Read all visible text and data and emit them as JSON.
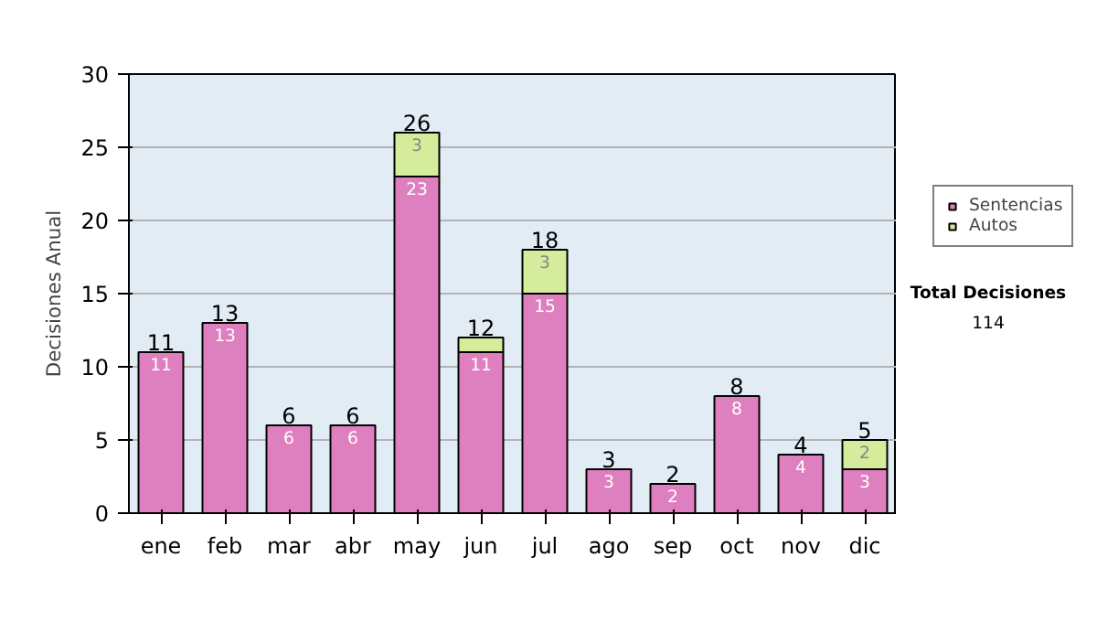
{
  "chart_data": {
    "type": "bar",
    "stacked": true,
    "ylabel": "Decisiones Anual",
    "categories": [
      "ene",
      "feb",
      "mar",
      "abr",
      "may",
      "jun",
      "jul",
      "ago",
      "sep",
      "oct",
      "nov",
      "dic"
    ],
    "series": [
      {
        "name": "Sentencias",
        "color": "#de7fbf",
        "values": [
          11,
          13,
          6,
          6,
          23,
          11,
          15,
          3,
          2,
          8,
          4,
          3
        ],
        "value_labels": [
          "11",
          "13",
          "6",
          "6",
          "23",
          "11",
          "15",
          "3",
          "2",
          "8",
          "4",
          "3"
        ]
      },
      {
        "name": "Autos",
        "color": "#d4ec9c",
        "values": [
          null,
          null,
          null,
          null,
          3,
          1,
          3,
          null,
          null,
          null,
          null,
          2
        ],
        "value_labels": [
          null,
          null,
          null,
          null,
          "3",
          null,
          "3",
          null,
          null,
          null,
          null,
          "2"
        ]
      }
    ],
    "totals": [
      "11",
      "13",
      "6",
      "6",
      "26",
      "12",
      "18",
      "3",
      "2",
      "8",
      "4",
      "5"
    ],
    "ylim": [
      0,
      30
    ],
    "yticks": [
      0,
      5,
      10,
      15,
      20,
      25,
      30
    ],
    "grid": "y",
    "legend": "right",
    "annotations": [
      "Total Decisiones",
      "114"
    ]
  }
}
